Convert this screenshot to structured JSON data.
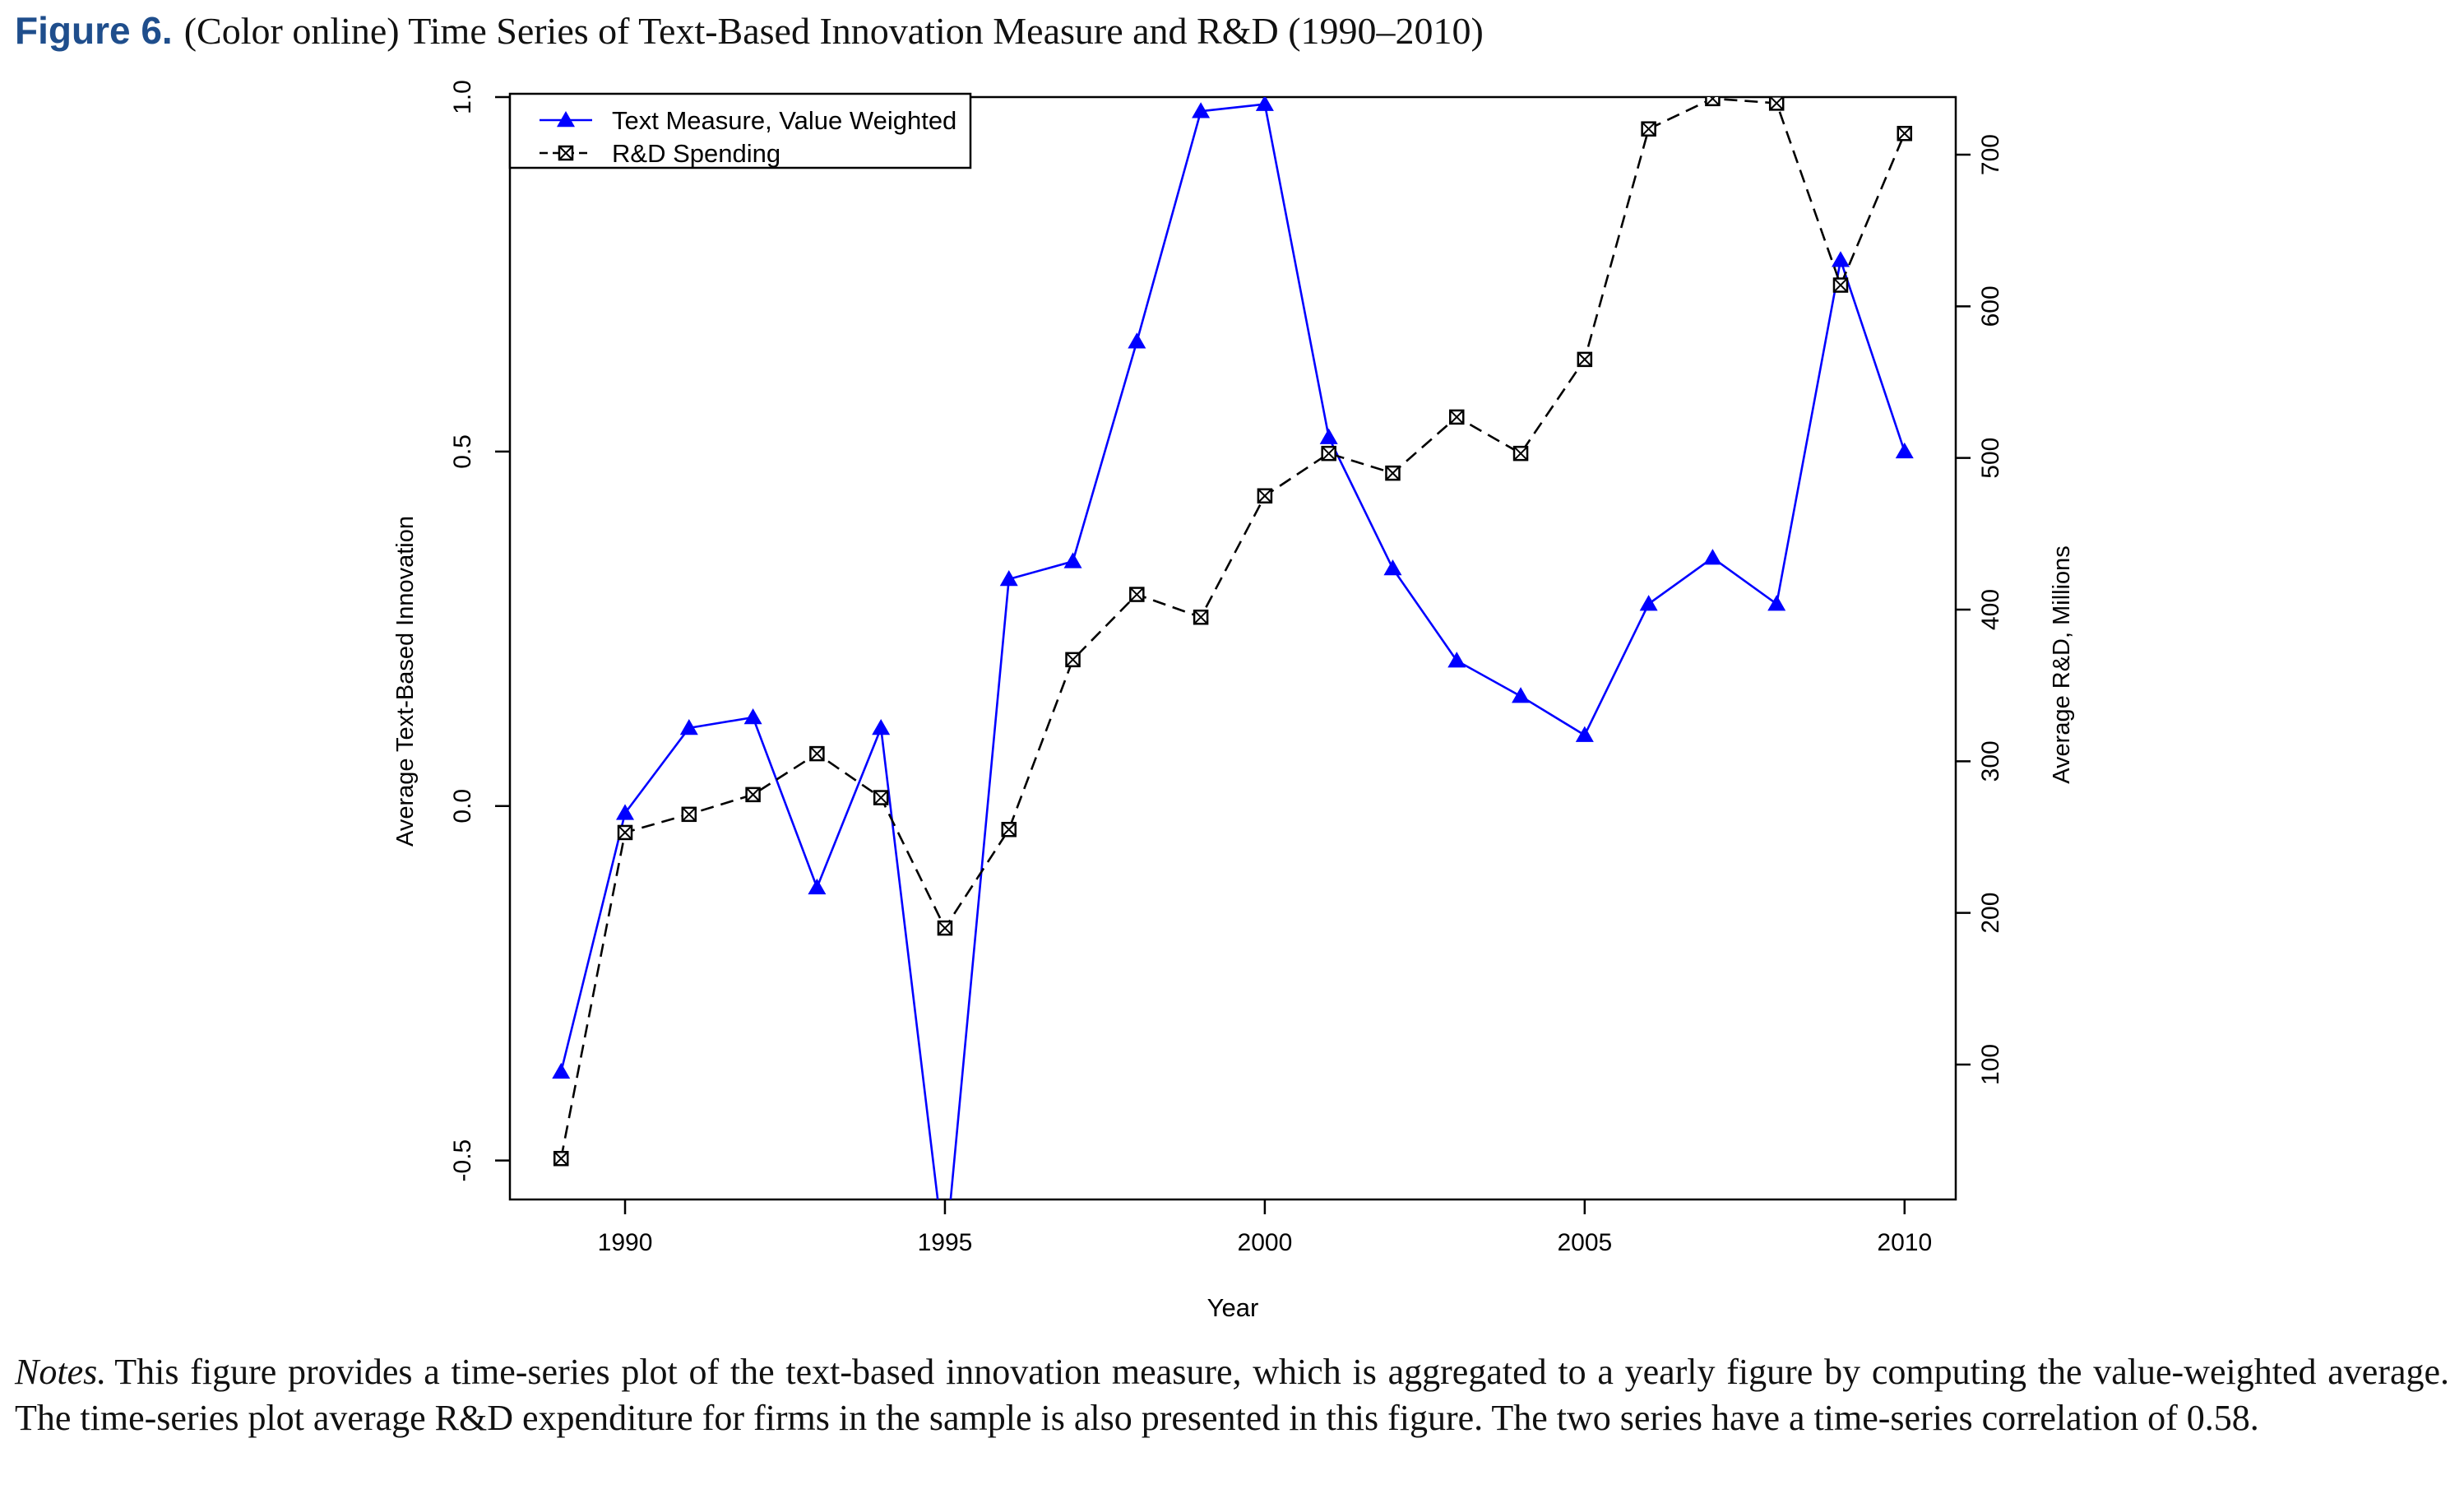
{
  "figure": {
    "label": "Figure 6.",
    "caption": "(Color online) Time Series of Text-Based Innovation Measure and R&D (1990–2010)"
  },
  "notes": {
    "label": "Notes.",
    "text": "This figure provides a time-series plot of the text-based innovation measure, which is aggregated to a yearly figure by computing the value-weighted average. The time-series plot average R&D expenditure for firms in the sample is also presented in this figure. The two series have a time-series correlation of 0.58."
  },
  "chart_data": {
    "type": "line",
    "title": "",
    "xlabel": "Year",
    "ylabel": "Average Text-Based Innovation",
    "y2label": "Average R&D, Millions",
    "xlim": [
      1988.2,
      2010.8
    ],
    "ylim": [
      -0.555,
      1.0
    ],
    "y2lim": [
      11,
      738
    ],
    "x_ticks": [
      1990,
      1995,
      2000,
      2005,
      2010
    ],
    "y_ticks": [
      -0.5,
      0.0,
      0.5,
      1.0
    ],
    "y_tick_labels": [
      "-0.5",
      "0.0",
      "0.5",
      "1.0"
    ],
    "y2_ticks": [
      100,
      200,
      300,
      400,
      500,
      600,
      700
    ],
    "grid": false,
    "legend_position": "top-left",
    "x": [
      1989,
      1990,
      1991,
      1992,
      1993,
      1994,
      1995,
      1996,
      1997,
      1998,
      1999,
      2000,
      2001,
      2002,
      2003,
      2004,
      2005,
      2006,
      2007,
      2008,
      2009,
      2010
    ],
    "series": [
      {
        "name": "Text Measure, Value Weighted",
        "axis": "left",
        "color": "#0000ff",
        "marker": "triangle",
        "line_style": "solid",
        "values": [
          -0.375,
          -0.01,
          0.11,
          0.125,
          -0.115,
          0.11,
          -0.64,
          0.32,
          0.345,
          0.655,
          0.98,
          0.99,
          0.52,
          0.335,
          0.205,
          0.155,
          0.1,
          0.285,
          0.35,
          0.285,
          0.77,
          0.5
        ]
      },
      {
        "name": "R&D Spending",
        "axis": "right",
        "color": "#000000",
        "marker": "boxed-x",
        "line_style": "dashed",
        "values": [
          38,
          253,
          265,
          278,
          305,
          276,
          190,
          255,
          367,
          410,
          395,
          475,
          503,
          490,
          527,
          503,
          565,
          717,
          737,
          734,
          614,
          714
        ]
      }
    ]
  }
}
